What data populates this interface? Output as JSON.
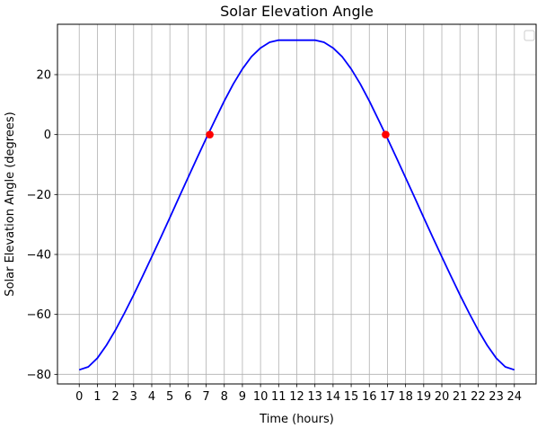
{
  "chart_data": {
    "type": "line",
    "title": "Solar Elevation Angle",
    "xlabel": "Time (hours)",
    "ylabel": "Solar Elevation Angle (degrees)",
    "xlim": [
      -1.2,
      25.2
    ],
    "ylim": [
      -83.2,
      36.8
    ],
    "xticks": [
      0,
      1,
      2,
      3,
      4,
      5,
      6,
      7,
      8,
      9,
      10,
      11,
      12,
      13,
      14,
      15,
      16,
      17,
      18,
      19,
      20,
      21,
      22,
      23,
      24
    ],
    "yticks": [
      -80,
      -60,
      -40,
      -20,
      0,
      20
    ],
    "ytick_labels": [
      "−80",
      "−60",
      "−40",
      "−20",
      "0",
      "20"
    ],
    "grid": true,
    "legend": "top-right",
    "series": [
      {
        "color": "#0000ff",
        "x": [
          0,
          0.5,
          1,
          1.5,
          2,
          2.5,
          3,
          3.5,
          4,
          4.5,
          5,
          5.5,
          6,
          6.5,
          7,
          7.5,
          8,
          8.5,
          9,
          9.5,
          10,
          10.5,
          11,
          11.5,
          12,
          12.5,
          13,
          13.5,
          14,
          14.5,
          15,
          15.5,
          16,
          16.5,
          17,
          17.5,
          18,
          18.5,
          19,
          19.5,
          20,
          20.5,
          21,
          21.5,
          22,
          22.5,
          23,
          23.5,
          24
        ],
        "y": [
          -78.5,
          -77.5,
          -74.6,
          -70.3,
          -65.2,
          -59.5,
          -53.5,
          -47.2,
          -40.8,
          -34.3,
          -27.7,
          -21.0,
          -14.4,
          -7.8,
          -1.3,
          5.0,
          11.2,
          16.9,
          21.9,
          26.0,
          28.9,
          30.8,
          31.5,
          31.5,
          31.5,
          31.5,
          31.5,
          30.8,
          28.9,
          26.0,
          21.9,
          16.9,
          11.2,
          5.0,
          -1.3,
          -7.8,
          -14.4,
          -21.0,
          -27.7,
          -34.3,
          -40.8,
          -47.2,
          -53.5,
          -59.5,
          -65.2,
          -70.3,
          -74.6,
          -77.5,
          -78.5
        ]
      },
      {
        "color": "#ff0000",
        "marker": "circle",
        "x": [
          7.2,
          16.9
        ],
        "y": [
          0,
          0
        ]
      }
    ]
  }
}
